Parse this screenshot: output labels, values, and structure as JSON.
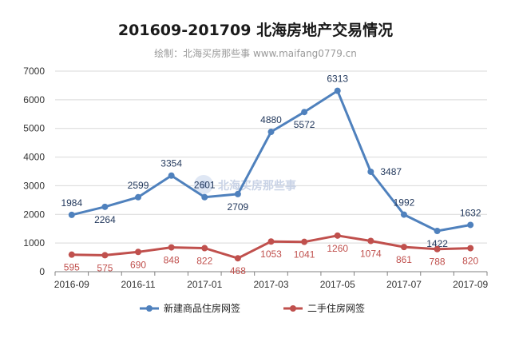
{
  "watermark": "北海买房那些事",
  "chart_data": {
    "type": "line",
    "title": "201609-201709 北海房地产交易情况",
    "subtitle": "绘制：北海买房那些事 www.maifang0779.cn",
    "x": [
      "2016-09",
      "2016-10",
      "2016-11",
      "2016-12",
      "2017-01",
      "2017-02",
      "2017-03",
      "2017-04",
      "2017-05",
      "2017-06",
      "2017-07",
      "2017-08",
      "2017-09"
    ],
    "x_tick_labels": [
      "2016-09",
      "2016-11",
      "2017-01",
      "2017-03",
      "2017-05",
      "2017-07",
      "2017-09"
    ],
    "ylim": [
      0,
      7000
    ],
    "y_ticks": [
      0,
      1000,
      2000,
      3000,
      4000,
      5000,
      6000,
      7000
    ],
    "grid": true,
    "legend_position": "bottom",
    "series": [
      {
        "name": "新建商品住房网签",
        "color": "#4f81bd",
        "label_color": "#23395d",
        "values": [
          1984,
          2264,
          2599,
          3354,
          2601,
          2709,
          4880,
          5572,
          6313,
          3487,
          1992,
          1422,
          1632
        ],
        "label_pos": [
          "above",
          "below",
          "above",
          "above",
          "above",
          "below",
          "above",
          "below",
          "above",
          "right",
          "above",
          "below",
          "above"
        ]
      },
      {
        "name": "二手住房网签",
        "color": "#c0504d",
        "label_color": "#c0504d",
        "values": [
          595,
          575,
          690,
          848,
          822,
          468,
          1053,
          1041,
          1260,
          1074,
          861,
          788,
          820
        ],
        "label_pos": [
          "below",
          "below",
          "below",
          "below",
          "below",
          "below",
          "below",
          "below",
          "below",
          "below",
          "below",
          "below",
          "below"
        ]
      }
    ]
  }
}
